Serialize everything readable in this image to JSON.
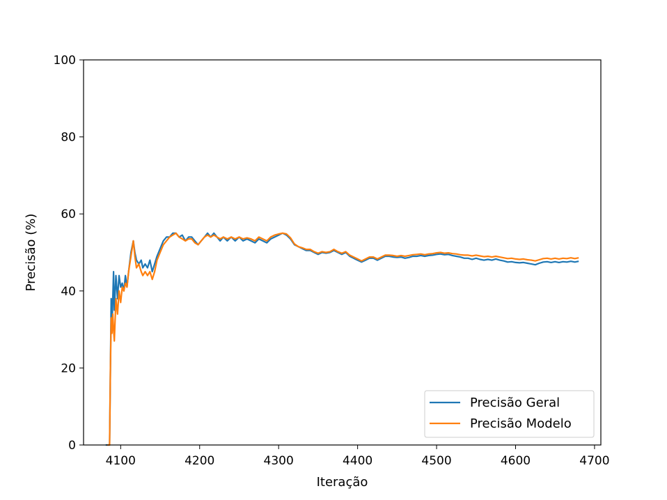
{
  "chart_data": {
    "type": "line",
    "title": "",
    "xlabel": "Iteração",
    "ylabel": "Precisão (%)",
    "xlim": [
      4053,
      4708
    ],
    "ylim": [
      0,
      100
    ],
    "xticks": [
      4100,
      4200,
      4300,
      4400,
      4500,
      4600,
      4700
    ],
    "yticks": [
      0,
      20,
      40,
      60,
      80,
      100
    ],
    "grid": false,
    "legend_position": "lower-right",
    "series": [
      {
        "name": "Precisão Geral",
        "color": "#1f77b4",
        "points": [
          [
            4081,
            0
          ],
          [
            4085,
            0
          ],
          [
            4086,
            0
          ],
          [
            4087,
            20
          ],
          [
            4088,
            38
          ],
          [
            4089,
            30
          ],
          [
            4090,
            38
          ],
          [
            4091,
            45
          ],
          [
            4092,
            35
          ],
          [
            4094,
            44
          ],
          [
            4096,
            38
          ],
          [
            4098,
            44
          ],
          [
            4100,
            41
          ],
          [
            4102,
            42
          ],
          [
            4104,
            40
          ],
          [
            4106,
            44
          ],
          [
            4108,
            41
          ],
          [
            4110,
            45
          ],
          [
            4113,
            50
          ],
          [
            4116,
            53
          ],
          [
            4118,
            50
          ],
          [
            4120,
            48
          ],
          [
            4123,
            47
          ],
          [
            4126,
            48
          ],
          [
            4128,
            46
          ],
          [
            4131,
            47
          ],
          [
            4134,
            46
          ],
          [
            4137,
            48
          ],
          [
            4140,
            45
          ],
          [
            4143,
            47
          ],
          [
            4146,
            49
          ],
          [
            4150,
            51
          ],
          [
            4154,
            53
          ],
          [
            4158,
            54
          ],
          [
            4162,
            54
          ],
          [
            4166,
            55
          ],
          [
            4170,
            55
          ],
          [
            4174,
            54
          ],
          [
            4178,
            54.5
          ],
          [
            4182,
            53
          ],
          [
            4186,
            54
          ],
          [
            4190,
            54
          ],
          [
            4194,
            53
          ],
          [
            4198,
            52
          ],
          [
            4202,
            53
          ],
          [
            4206,
            54
          ],
          [
            4210,
            55
          ],
          [
            4214,
            54
          ],
          [
            4218,
            55
          ],
          [
            4222,
            54
          ],
          [
            4226,
            53
          ],
          [
            4230,
            54
          ],
          [
            4235,
            53
          ],
          [
            4240,
            54
          ],
          [
            4245,
            53
          ],
          [
            4250,
            54
          ],
          [
            4255,
            53
          ],
          [
            4260,
            53.5
          ],
          [
            4265,
            53
          ],
          [
            4270,
            52.5
          ],
          [
            4275,
            53.5
          ],
          [
            4280,
            53
          ],
          [
            4285,
            52.5
          ],
          [
            4290,
            53.5
          ],
          [
            4295,
            54
          ],
          [
            4300,
            54.5
          ],
          [
            4305,
            55
          ],
          [
            4310,
            54.5
          ],
          [
            4315,
            53.5
          ],
          [
            4320,
            52
          ],
          [
            4325,
            51.5
          ],
          [
            4330,
            51
          ],
          [
            4335,
            50.5
          ],
          [
            4340,
            50.5
          ],
          [
            4345,
            50
          ],
          [
            4350,
            49.5
          ],
          [
            4355,
            50
          ],
          [
            4360,
            49.8
          ],
          [
            4365,
            50
          ],
          [
            4370,
            50.5
          ],
          [
            4375,
            50
          ],
          [
            4380,
            49.5
          ],
          [
            4385,
            50
          ],
          [
            4390,
            49
          ],
          [
            4395,
            48.5
          ],
          [
            4400,
            48
          ],
          [
            4405,
            47.5
          ],
          [
            4410,
            48
          ],
          [
            4415,
            48.5
          ],
          [
            4420,
            48.5
          ],
          [
            4425,
            48
          ],
          [
            4430,
            48.5
          ],
          [
            4435,
            49
          ],
          [
            4440,
            49
          ],
          [
            4445,
            48.8
          ],
          [
            4450,
            48.7
          ],
          [
            4455,
            48.8
          ],
          [
            4460,
            48.5
          ],
          [
            4465,
            48.7
          ],
          [
            4470,
            49
          ],
          [
            4475,
            49
          ],
          [
            4480,
            49.2
          ],
          [
            4485,
            49
          ],
          [
            4490,
            49.2
          ],
          [
            4495,
            49.3
          ],
          [
            4500,
            49.5
          ],
          [
            4505,
            49.6
          ],
          [
            4510,
            49.4
          ],
          [
            4515,
            49.5
          ],
          [
            4520,
            49.2
          ],
          [
            4525,
            49
          ],
          [
            4530,
            48.8
          ],
          [
            4535,
            48.5
          ],
          [
            4540,
            48.5
          ],
          [
            4545,
            48.2
          ],
          [
            4550,
            48.5
          ],
          [
            4555,
            48.2
          ],
          [
            4560,
            48
          ],
          [
            4565,
            48.2
          ],
          [
            4570,
            48
          ],
          [
            4575,
            48.3
          ],
          [
            4580,
            48
          ],
          [
            4585,
            47.8
          ],
          [
            4590,
            47.5
          ],
          [
            4595,
            47.6
          ],
          [
            4600,
            47.4
          ],
          [
            4605,
            47.3
          ],
          [
            4610,
            47.4
          ],
          [
            4615,
            47.2
          ],
          [
            4620,
            47
          ],
          [
            4625,
            46.8
          ],
          [
            4630,
            47.2
          ],
          [
            4635,
            47.5
          ],
          [
            4640,
            47.6
          ],
          [
            4645,
            47.4
          ],
          [
            4650,
            47.6
          ],
          [
            4655,
            47.4
          ],
          [
            4660,
            47.6
          ],
          [
            4665,
            47.5
          ],
          [
            4670,
            47.7
          ],
          [
            4675,
            47.5
          ],
          [
            4680,
            47.7
          ]
        ]
      },
      {
        "name": "Precisão Modelo",
        "color": "#ff7f0e",
        "points": [
          [
            4083,
            0
          ],
          [
            4086,
            0
          ],
          [
            4087,
            20
          ],
          [
            4088,
            33
          ],
          [
            4089,
            29
          ],
          [
            4090,
            34
          ],
          [
            4091,
            30
          ],
          [
            4092,
            27
          ],
          [
            4094,
            38
          ],
          [
            4096,
            34
          ],
          [
            4098,
            40
          ],
          [
            4100,
            37
          ],
          [
            4102,
            41
          ],
          [
            4104,
            40
          ],
          [
            4106,
            42
          ],
          [
            4108,
            41
          ],
          [
            4110,
            45
          ],
          [
            4113,
            49
          ],
          [
            4116,
            53
          ],
          [
            4118,
            49
          ],
          [
            4120,
            46
          ],
          [
            4123,
            47
          ],
          [
            4126,
            45
          ],
          [
            4128,
            44
          ],
          [
            4131,
            45
          ],
          [
            4134,
            44
          ],
          [
            4137,
            45
          ],
          [
            4140,
            43
          ],
          [
            4143,
            45
          ],
          [
            4146,
            48
          ],
          [
            4150,
            50
          ],
          [
            4154,
            52
          ],
          [
            4158,
            53
          ],
          [
            4162,
            54
          ],
          [
            4166,
            54.5
          ],
          [
            4170,
            55
          ],
          [
            4174,
            54
          ],
          [
            4178,
            53.5
          ],
          [
            4182,
            53
          ],
          [
            4186,
            53.5
          ],
          [
            4190,
            53.5
          ],
          [
            4194,
            52.5
          ],
          [
            4198,
            52
          ],
          [
            4202,
            53
          ],
          [
            4206,
            54
          ],
          [
            4210,
            54.5
          ],
          [
            4214,
            54
          ],
          [
            4218,
            54.5
          ],
          [
            4222,
            54
          ],
          [
            4226,
            53.5
          ],
          [
            4230,
            54
          ],
          [
            4235,
            53.5
          ],
          [
            4240,
            54
          ],
          [
            4245,
            53.5
          ],
          [
            4250,
            54
          ],
          [
            4255,
            53.5
          ],
          [
            4260,
            53.8
          ],
          [
            4265,
            53.5
          ],
          [
            4270,
            53
          ],
          [
            4275,
            54
          ],
          [
            4280,
            53.5
          ],
          [
            4285,
            53
          ],
          [
            4290,
            54
          ],
          [
            4295,
            54.5
          ],
          [
            4300,
            54.8
          ],
          [
            4305,
            55
          ],
          [
            4310,
            54.8
          ],
          [
            4315,
            53.8
          ],
          [
            4320,
            52.2
          ],
          [
            4325,
            51.5
          ],
          [
            4330,
            51.2
          ],
          [
            4335,
            50.8
          ],
          [
            4340,
            50.8
          ],
          [
            4345,
            50.2
          ],
          [
            4350,
            49.8
          ],
          [
            4355,
            50.2
          ],
          [
            4360,
            50
          ],
          [
            4365,
            50.2
          ],
          [
            4370,
            50.8
          ],
          [
            4375,
            50.2
          ],
          [
            4380,
            49.8
          ],
          [
            4385,
            50.2
          ],
          [
            4390,
            49.3
          ],
          [
            4395,
            48.8
          ],
          [
            4400,
            48.3
          ],
          [
            4405,
            47.8
          ],
          [
            4410,
            48.3
          ],
          [
            4415,
            48.8
          ],
          [
            4420,
            48.8
          ],
          [
            4425,
            48.3
          ],
          [
            4430,
            48.8
          ],
          [
            4435,
            49.3
          ],
          [
            4440,
            49.3
          ],
          [
            4445,
            49.2
          ],
          [
            4450,
            49
          ],
          [
            4455,
            49.2
          ],
          [
            4460,
            49
          ],
          [
            4465,
            49.2
          ],
          [
            4470,
            49.4
          ],
          [
            4475,
            49.5
          ],
          [
            4480,
            49.6
          ],
          [
            4485,
            49.4
          ],
          [
            4490,
            49.6
          ],
          [
            4495,
            49.7
          ],
          [
            4500,
            49.9
          ],
          [
            4505,
            50
          ],
          [
            4510,
            49.8
          ],
          [
            4515,
            49.9
          ],
          [
            4520,
            49.7
          ],
          [
            4525,
            49.6
          ],
          [
            4530,
            49.4
          ],
          [
            4535,
            49.3
          ],
          [
            4540,
            49.3
          ],
          [
            4545,
            49.1
          ],
          [
            4550,
            49.3
          ],
          [
            4555,
            49.1
          ],
          [
            4560,
            48.9
          ],
          [
            4565,
            49
          ],
          [
            4570,
            48.8
          ],
          [
            4575,
            49
          ],
          [
            4580,
            48.8
          ],
          [
            4585,
            48.6
          ],
          [
            4590,
            48.4
          ],
          [
            4595,
            48.5
          ],
          [
            4600,
            48.3
          ],
          [
            4605,
            48.2
          ],
          [
            4610,
            48.3
          ],
          [
            4615,
            48.1
          ],
          [
            4620,
            48
          ],
          [
            4625,
            47.8
          ],
          [
            4630,
            48.1
          ],
          [
            4635,
            48.4
          ],
          [
            4640,
            48.5
          ],
          [
            4645,
            48.3
          ],
          [
            4650,
            48.5
          ],
          [
            4655,
            48.3
          ],
          [
            4660,
            48.5
          ],
          [
            4665,
            48.4
          ],
          [
            4670,
            48.6
          ],
          [
            4675,
            48.4
          ],
          [
            4680,
            48.6
          ]
        ]
      }
    ]
  }
}
